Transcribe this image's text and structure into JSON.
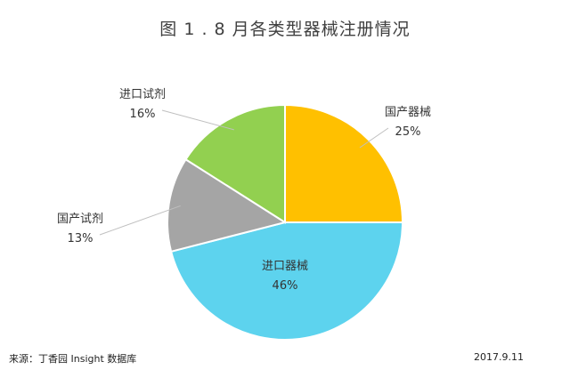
{
  "chart_data": {
    "type": "pie",
    "title": "图 1 . 8 月各类型器械注册情况",
    "slices": [
      {
        "label": "国产器械",
        "value": 25,
        "display": "25%",
        "color": "#FFC000"
      },
      {
        "label": "进口器械",
        "value": 46,
        "display": "46%",
        "color": "#5DD3EE"
      },
      {
        "label": "国产试剂",
        "value": 13,
        "display": "13%",
        "color": "#A5A5A5"
      },
      {
        "label": "进口试剂",
        "value": 16,
        "display": "16%",
        "color": "#92D050"
      }
    ],
    "label_position": "outside with leader lines; 进口器械 inside"
  },
  "footer": {
    "source": "来源：丁香园 Insight 数据库",
    "date": "2017.9.11"
  }
}
